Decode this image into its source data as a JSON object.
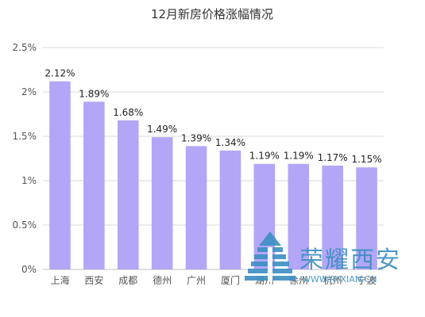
{
  "chart_data": {
    "type": "bar",
    "title": "12月新房价格涨幅情况",
    "xlabel": "",
    "ylabel": "",
    "categories": [
      "上海",
      "西安",
      "成都",
      "德州",
      "广州",
      "厦门",
      "湖州",
      "徐州",
      "杭州",
      "宁波"
    ],
    "values": [
      2.12,
      1.89,
      1.68,
      1.49,
      1.39,
      1.34,
      1.19,
      1.19,
      1.17,
      1.15
    ],
    "data_labels": [
      "2.12%",
      "1.89%",
      "1.68%",
      "1.49%",
      "1.39%",
      "1.34%",
      "1.19%",
      "1.19%",
      "1.17%",
      "1.15%"
    ],
    "ylim": [
      0,
      2.5
    ],
    "yticks": [
      0,
      0.5,
      1,
      1.5,
      2,
      2.5
    ],
    "ytick_labels": [
      "0%",
      "0.5%",
      "1%",
      "1.5%",
      "2%",
      "2.5%"
    ],
    "grid": true,
    "legend": "none",
    "bar_color": "#b3a6f6"
  },
  "watermark": {
    "text": "荣耀西安",
    "url": "WWW.RYXIAN.CN",
    "color": "#3d8fc4"
  }
}
